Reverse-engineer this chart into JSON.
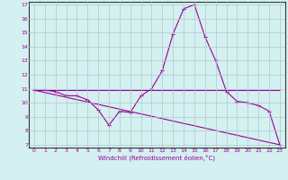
{
  "xlabel": "Windchill (Refroidissement éolien,°C)",
  "background_color": "#d4f0f0",
  "grid_color": "#b0c8c8",
  "line_color": "#990099",
  "spine_color": "#333333",
  "xlim": [
    -0.5,
    23.5
  ],
  "ylim": [
    6.8,
    17.2
  ],
  "yticks": [
    7,
    8,
    9,
    10,
    11,
    12,
    13,
    14,
    15,
    16,
    17
  ],
  "xticks": [
    0,
    1,
    2,
    3,
    4,
    5,
    6,
    7,
    8,
    9,
    10,
    11,
    12,
    13,
    14,
    15,
    16,
    17,
    18,
    19,
    20,
    21,
    22,
    23
  ],
  "curve1_x": [
    0,
    1,
    2,
    3,
    4,
    5,
    6,
    7,
    8,
    9,
    10,
    11,
    12,
    13,
    14,
    15,
    16,
    17,
    18,
    19,
    20,
    21,
    22,
    23
  ],
  "curve1_y": [
    10.9,
    10.9,
    10.8,
    10.5,
    10.5,
    10.2,
    9.5,
    8.4,
    9.4,
    9.3,
    10.5,
    11.0,
    12.3,
    14.9,
    16.7,
    17.0,
    14.7,
    13.0,
    10.8,
    10.1,
    10.0,
    9.8,
    9.4,
    7.0
  ],
  "curve2_x": [
    0,
    23
  ],
  "curve2_y": [
    10.9,
    10.9
  ],
  "curve3_x": [
    0,
    23
  ],
  "curve3_y": [
    10.9,
    7.0
  ],
  "tick_fontsize": 4.5,
  "xlabel_fontsize": 5.0
}
